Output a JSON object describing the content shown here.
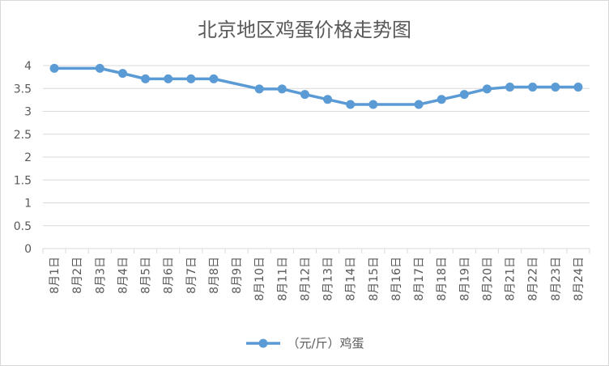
{
  "chart_data": {
    "type": "line",
    "title": "北京地区鸡蛋价格走势图",
    "categories": [
      "8月1日",
      "8月2日",
      "8月3日",
      "8月4日",
      "8月5日",
      "8月6日",
      "8月7日",
      "8月8日",
      "8月9日",
      "8月10日",
      "8月11日",
      "8月12日",
      "8月13日",
      "8月14日",
      "8月15日",
      "8月16日",
      "8月17日",
      "8月18日",
      "8月19日",
      "8月20日",
      "8月21日",
      "8月22日",
      "8月23日",
      "8月24日"
    ],
    "series": [
      {
        "name": "（元/斤）鸡蛋",
        "values": [
          3.94,
          null,
          3.94,
          3.83,
          3.71,
          3.71,
          3.71,
          3.71,
          null,
          3.49,
          3.49,
          3.37,
          3.26,
          3.15,
          3.15,
          null,
          3.15,
          3.26,
          3.37,
          3.49,
          3.53,
          3.53,
          3.53,
          3.53
        ],
        "color": "#5b9bd5"
      }
    ],
    "ylim": [
      0,
      4
    ],
    "yticks": [
      "0",
      "0.5",
      "1",
      "1.5",
      "2",
      "2.5",
      "3",
      "3.5",
      "4"
    ],
    "grid": "horizontal",
    "legend": "bottom"
  }
}
